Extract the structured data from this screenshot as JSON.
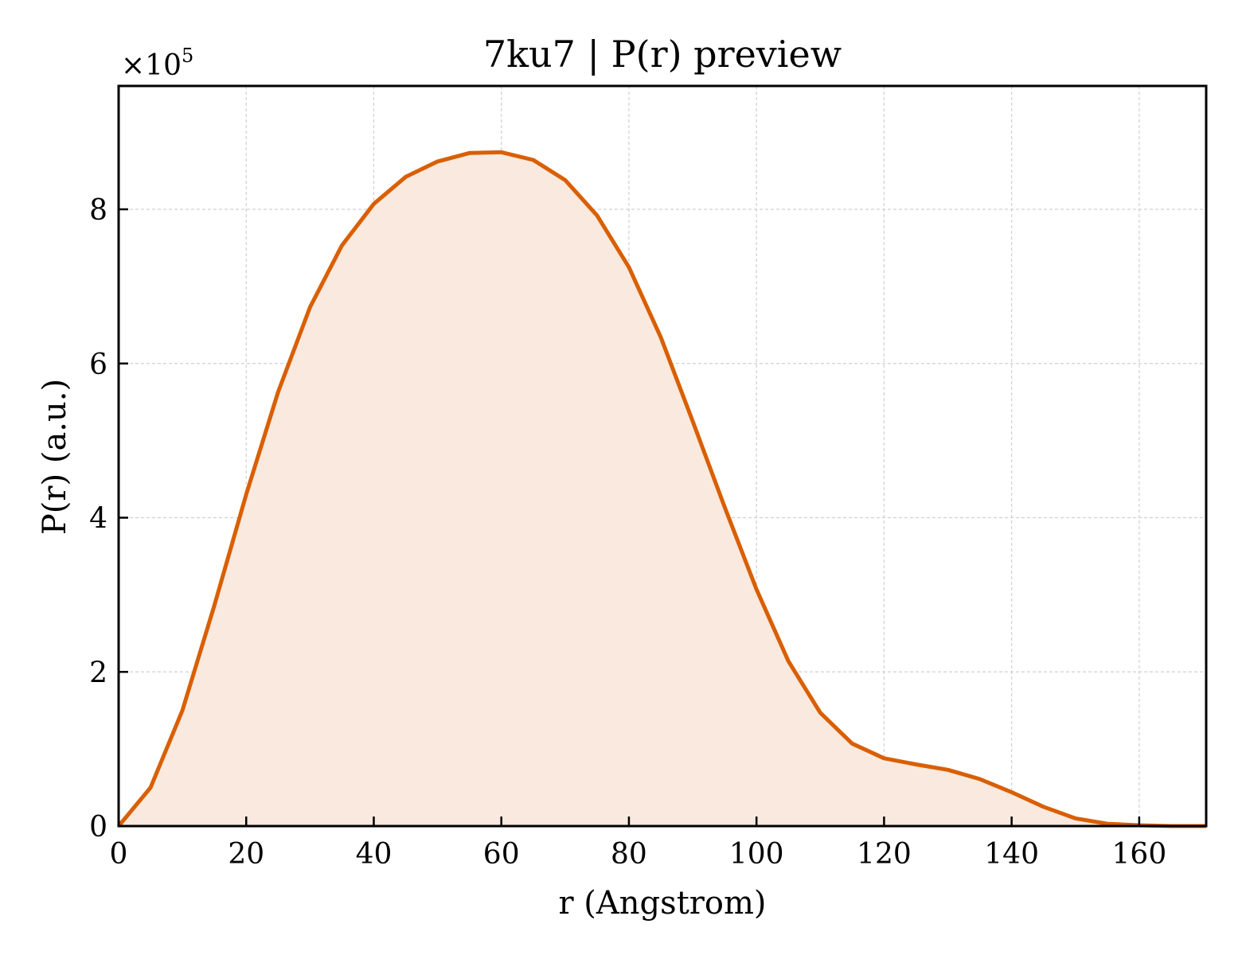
{
  "chart_data": {
    "type": "area",
    "title": "7ku7 | P(r) preview",
    "xlabel": "r (Angstrom)",
    "ylabel": "P(r) (a.u.)",
    "y_multiplier_label": "×10",
    "y_multiplier_exp": "5",
    "xlim": [
      0,
      170.5
    ],
    "ylim": [
      0,
      9.6
    ],
    "y_scale": 100000,
    "grid": true,
    "x_ticks": [
      0,
      20,
      40,
      60,
      80,
      100,
      120,
      140,
      160
    ],
    "y_ticks": [
      0,
      2,
      4,
      6,
      8
    ],
    "color": "#d95f02",
    "fill_color": "#fae9de",
    "x": [
      0,
      5,
      10,
      15,
      20,
      25,
      30,
      35,
      40,
      45,
      50,
      55,
      60,
      65,
      70,
      75,
      80,
      85,
      90,
      95,
      100,
      105,
      110,
      115,
      120,
      125,
      130,
      135,
      140,
      145,
      150,
      155,
      160,
      165,
      170.5
    ],
    "y": [
      0,
      0.5,
      1.5,
      2.86,
      4.3,
      5.63,
      6.73,
      7.53,
      8.07,
      8.42,
      8.62,
      8.73,
      8.74,
      8.64,
      8.38,
      7.92,
      7.25,
      6.34,
      5.25,
      4.14,
      3.07,
      2.14,
      1.47,
      1.07,
      0.88,
      0.8,
      0.73,
      0.61,
      0.44,
      0.25,
      0.1,
      0.03,
      0.01,
      0,
      0
    ]
  }
}
